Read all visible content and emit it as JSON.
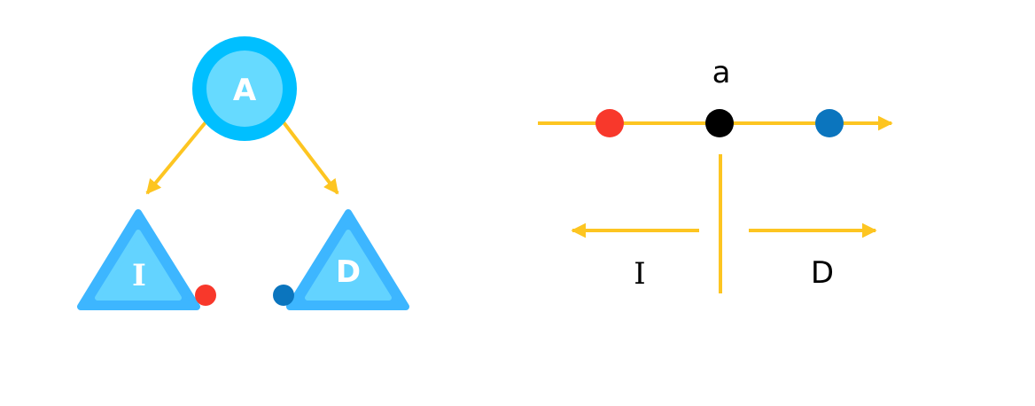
{
  "tree": {
    "root": {
      "label": "A"
    },
    "left_child": {
      "label": "I"
    },
    "right_child": {
      "label": "D"
    }
  },
  "number_line": {
    "pivot_label": "a",
    "left_label": "I",
    "right_label": "D"
  },
  "colors": {
    "arrow": "#FDC521",
    "node_outer": "#00BFFF",
    "node_inner": "#66DAFF",
    "triangle_outer": "#3DB6FF",
    "triangle_inner": "#63D3FF",
    "left_point": "#F8382B",
    "right_point": "#0B75BE",
    "pivot_point": "#000000"
  }
}
